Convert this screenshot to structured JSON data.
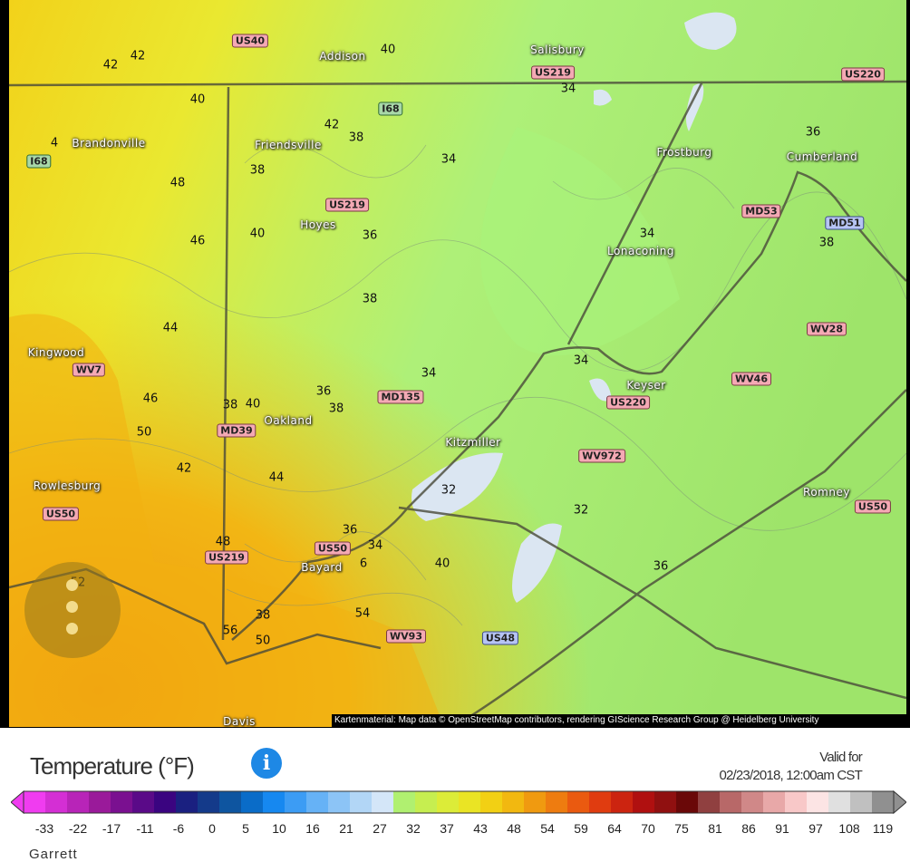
{
  "map": {
    "towns": [
      "Addison",
      "Salisbury",
      "Brandonville",
      "Friendsville",
      "Frostburg",
      "Cumberland",
      "Hoyes",
      "Lonaconing",
      "Kingwood",
      "Keyser",
      "Oakland",
      "Kitzmiller",
      "Rowlesburg",
      "Romney",
      "Bayard",
      "Davis"
    ],
    "roads": [
      {
        "label": "US40",
        "type": "us"
      },
      {
        "label": "US219",
        "type": "us"
      },
      {
        "label": "US220",
        "type": "us"
      },
      {
        "label": "I68",
        "type": "interstate"
      },
      {
        "label": "I68",
        "type": "interstate"
      },
      {
        "label": "US219",
        "type": "us"
      },
      {
        "label": "MD53",
        "type": "us"
      },
      {
        "label": "MD51",
        "type": "state"
      },
      {
        "label": "WV28",
        "type": "us"
      },
      {
        "label": "WV7",
        "type": "us"
      },
      {
        "label": "MD135",
        "type": "us"
      },
      {
        "label": "WV46",
        "type": "us"
      },
      {
        "label": "US220",
        "type": "us"
      },
      {
        "label": "MD39",
        "type": "us"
      },
      {
        "label": "WV972",
        "type": "us"
      },
      {
        "label": "US50",
        "type": "us"
      },
      {
        "label": "US50",
        "type": "us"
      },
      {
        "label": "US219",
        "type": "us"
      },
      {
        "label": "US50",
        "type": "us"
      },
      {
        "label": "WV93",
        "type": "us"
      },
      {
        "label": "US48",
        "type": "state"
      }
    ],
    "temperature_labels": [
      "42",
      "42",
      "40",
      "40",
      "34",
      "4",
      "42",
      "38",
      "34",
      "36",
      "38",
      "48",
      "40",
      "36",
      "34",
      "46",
      "38",
      "38",
      "44",
      "34",
      "34",
      "36",
      "38",
      "38",
      "40",
      "46",
      "50",
      "42",
      "44",
      "32",
      "32",
      "36",
      "6",
      "34",
      "40",
      "36",
      "48",
      "52",
      "38",
      "54",
      "56",
      "50"
    ],
    "attribution": "Kartenmaterial: Map data © OpenStreetMap contributors, rendering GIScience Research Group @ Heidelberg University",
    "location_control_icon": "locate-dots-icon"
  },
  "legend": {
    "title": "Temperature (°F)",
    "info_icon": "i",
    "valid_label": "Valid for",
    "valid_time": "02/23/2018, 12:00am CST",
    "ticks": [
      "-33",
      "-22",
      "-17",
      "-11",
      "-6",
      "0",
      "5",
      "10",
      "16",
      "21",
      "27",
      "32",
      "37",
      "43",
      "48",
      "54",
      "59",
      "64",
      "70",
      "75",
      "81",
      "86",
      "91",
      "97",
      "108",
      "119"
    ],
    "colors": [
      "#f03cf0",
      "#d42fd4",
      "#b824b8",
      "#9a1a9a",
      "#7a1090",
      "#5a0a88",
      "#3a0480",
      "#1a2080",
      "#143a8a",
      "#0e55a0",
      "#0a6cc8",
      "#1688f0",
      "#3c9cf4",
      "#66b2f6",
      "#8cc4f6",
      "#b2d6f6",
      "#d4e6f8",
      "#b0f070",
      "#c6ee50",
      "#dcec38",
      "#eae424",
      "#f2d014",
      "#f2b810",
      "#f09a10",
      "#ee7c10",
      "#ea5a10",
      "#e03c10",
      "#cc2410",
      "#b01010",
      "#901010",
      "#6a0808",
      "#904040",
      "#b86868",
      "#d08888",
      "#e8a8a8",
      "#f8c8c8",
      "#fce4e4",
      "#e0e0e0",
      "#c0c0c0",
      "#909090"
    ],
    "region": "Garrett"
  }
}
